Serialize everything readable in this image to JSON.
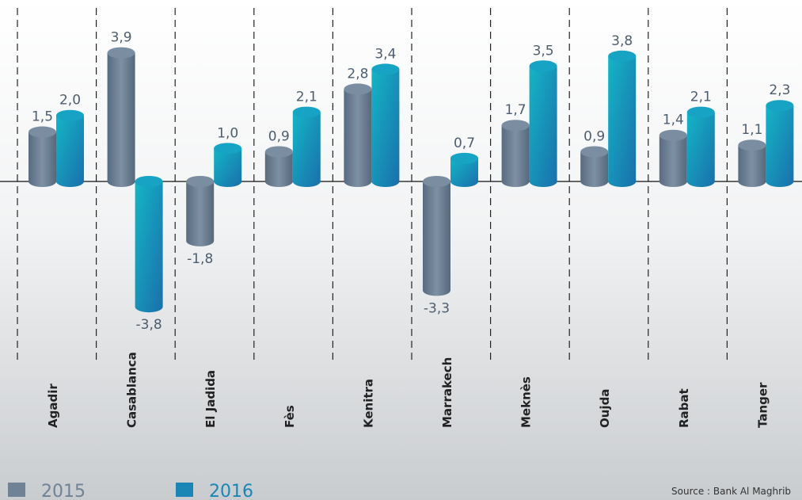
{
  "chart_data": {
    "type": "bar",
    "categories": [
      "Agadir",
      "Casablanca",
      "El Jadida",
      "Fès",
      "Kenitra",
      "Marrakech",
      "Meknès",
      "Oujda",
      "Rabat",
      "Tanger"
    ],
    "series": [
      {
        "name": "2015",
        "color": "#6f8296",
        "values": [
          1.5,
          3.9,
          -1.8,
          0.9,
          2.8,
          -3.3,
          1.7,
          0.9,
          1.4,
          1.1
        ],
        "value_labels": [
          "1,5",
          "3,9",
          "-1,8",
          "0,9",
          "2,8",
          "-3,3",
          "1,7",
          "0,9",
          "1,4",
          "1,1"
        ]
      },
      {
        "name": "2016",
        "color": "#1a86b5",
        "values": [
          2.0,
          -3.8,
          1.0,
          2.1,
          3.4,
          0.7,
          3.5,
          3.8,
          2.1,
          2.3
        ],
        "value_labels": [
          "2,0",
          "-3,8",
          "1,0",
          "2,1",
          "3,4",
          "0,7",
          "3,5",
          "3,8",
          "2,1",
          "2,3"
        ]
      }
    ],
    "ylim": [
      -5.5,
      5.5
    ],
    "source": "Source : Bank Al Maghrib"
  }
}
